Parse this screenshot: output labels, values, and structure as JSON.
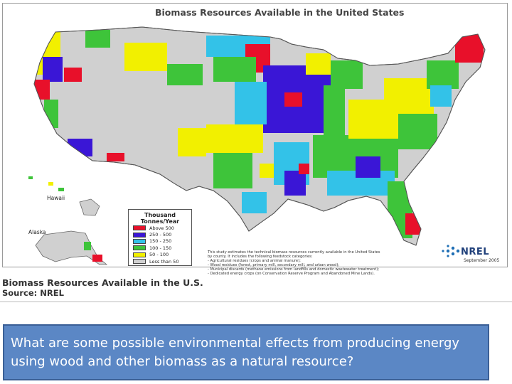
{
  "map": {
    "title": "Biomass Resources Available in the United States",
    "legend": {
      "title_line1": "Thousand",
      "title_line2": "Tonnes/Year",
      "items": [
        {
          "label": "Above 500",
          "color": "#e8102a"
        },
        {
          "label": "250 - 500",
          "color": "#3a16d6"
        },
        {
          "label": "150 - 250",
          "color": "#33c2e8"
        },
        {
          "label": "100 - 150",
          "color": "#3ec43a"
        },
        {
          "label": "50 - 100",
          "color": "#f2f000"
        },
        {
          "label": "Less than 50",
          "color": "#d0d0d0"
        }
      ]
    },
    "places": {
      "hawaii": "Hawaii",
      "alaska": "Alaska"
    },
    "notes": {
      "line1": "This study estimates the technical biomass resources currently available in the United States",
      "line2": "by county. It includes the following feedstock categories:",
      "line3": "- Agricultural residues (crops and animal manure);",
      "line4": "- Wood residues (forest, primary mill, secondary mill, and urban wood);",
      "line5": "- Municipal discards (methane emissions from landfills and domestic wastewater treatment);",
      "line6": "- Dedicated energy crops (on Conservation Reserve Program and Abandoned Mine Lands)."
    },
    "logo_text": "NREL",
    "date": "September 2005"
  },
  "caption": {
    "title": "Biomass Resources Available in the U.S.",
    "source": "Source: NREL"
  },
  "question": "What are some possible environmental effects from producing energy using wood and other biomass as a natural resource?"
}
